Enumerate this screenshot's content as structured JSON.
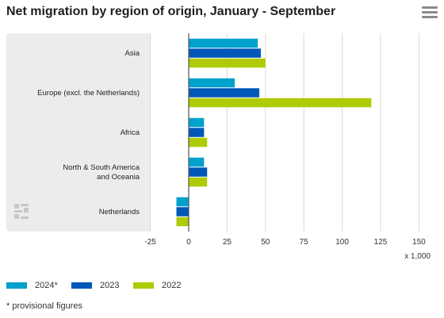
{
  "title": "Net migration by region of origin, January - September",
  "menu_icon": "hamburger-menu-icon",
  "watermark_icon": "cbs-logo-icon",
  "footnote": "* provisional figures",
  "colors": {
    "panel": "#ececec",
    "series_2024": "#00a1cd",
    "series_2023": "#0058b8",
    "series_2022": "#afcb05",
    "axis": "#555555",
    "grid": "#d8d8d8"
  },
  "chart_data": {
    "type": "bar",
    "orientation": "horizontal",
    "categories": [
      "Asia",
      "Europe (excl. the Netherlands)",
      "Africa",
      "North & South America and Oceania",
      "Netherlands"
    ],
    "series": [
      {
        "name": "2024*",
        "values": [
          45,
          30,
          10,
          10,
          -8
        ]
      },
      {
        "name": "2023",
        "values": [
          47,
          46,
          10,
          12,
          -8
        ]
      },
      {
        "name": "2022",
        "values": [
          50,
          119,
          12,
          12,
          -8
        ]
      }
    ],
    "xlim": [
      -25,
      150
    ],
    "xticks": [
      "-25",
      "0",
      "25",
      "50",
      "75",
      "100",
      "125",
      "150"
    ],
    "xunit": "x 1,000",
    "legend_position": "bottom",
    "grid": true
  }
}
